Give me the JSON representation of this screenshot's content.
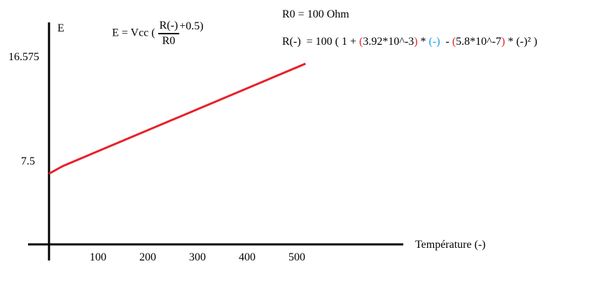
{
  "chart_data": {
    "type": "line",
    "title": "",
    "xlabel": "Température (-)",
    "ylabel": "E",
    "x_ticks": [
      100,
      200,
      300,
      400,
      500
    ],
    "y_ticks": [
      "7.5",
      "16.575"
    ],
    "y_tick_values": [
      7.5,
      16.575
    ],
    "xlim": [
      0,
      710
    ],
    "ylim": [
      0.4,
      19.5
    ],
    "series": [
      {
        "name": "E",
        "color": "#e8202a",
        "x": [
          0,
          28,
          516
        ],
        "y": [
          6.46,
          7.13,
          16.03
        ]
      }
    ]
  },
  "formula_e": {
    "lhs": "E = Vcc (",
    "num": "R(-)",
    "den": "R0",
    "rhs": "+0.5)"
  },
  "r0": "R0 = 100 Ohm",
  "formula_r": {
    "p1": "R(-)  = 100 ( 1 + ",
    "open1": "(",
    "c1": "3.92*10^-3",
    "close1": ")",
    "p2": " * ",
    "var1": "(-)",
    "p3": "  - ",
    "open2": "(",
    "c2": "5.8*10^-7",
    "close2": ")",
    "p4": " * ",
    "var2": "(-)²",
    "p5": " )"
  }
}
